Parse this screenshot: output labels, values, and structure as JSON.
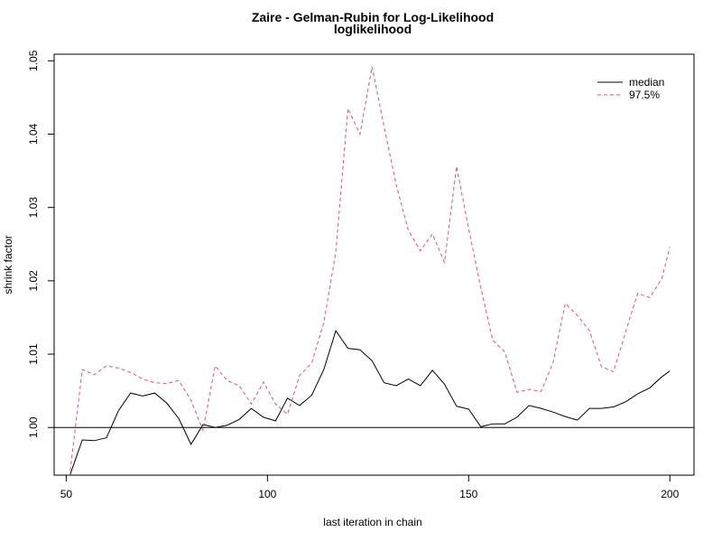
{
  "chart_data": {
    "type": "line",
    "title": "Zaire - Gelman-Rubin for Log-Likelihood",
    "subtitle": "loglikelihood",
    "xlabel": "last iteration in chain",
    "ylabel": "shrink factor",
    "xlim": [
      47,
      206
    ],
    "ylim": [
      0.9935,
      1.0509
    ],
    "x_ticks": [
      50,
      100,
      150,
      200
    ],
    "y_ticks": [
      1.0,
      1.01,
      1.02,
      1.03,
      1.04,
      1.05
    ],
    "x_tick_labels": [
      "50",
      "100",
      "150",
      "200"
    ],
    "y_tick_labels": [
      "1.00",
      "1.01",
      "1.02",
      "1.03",
      "1.04",
      "1.05"
    ],
    "hline": 1.0,
    "legend_position": "top-right",
    "x": [
      51,
      54,
      57,
      60,
      63,
      66,
      69,
      72,
      75,
      78,
      81,
      84,
      87,
      90,
      93,
      96,
      99,
      102,
      105,
      108,
      111,
      114,
      117,
      120,
      123,
      126,
      129,
      132,
      135,
      138,
      141,
      144,
      147,
      150,
      153,
      156,
      159,
      162,
      165,
      168,
      171,
      174,
      177,
      180,
      183,
      186,
      189,
      192,
      195,
      198,
      200
    ],
    "series": [
      {
        "name": "median",
        "color": "#000000",
        "dash": "solid",
        "values": [
          0.9936,
          0.9983,
          0.9982,
          0.9986,
          1.0023,
          1.0047,
          1.0043,
          1.0047,
          1.0033,
          1.0012,
          0.9977,
          1.0004,
          1.0,
          1.0003,
          1.0011,
          1.0026,
          1.0014,
          1.0009,
          1.004,
          1.003,
          1.0044,
          1.0079,
          1.0132,
          1.0108,
          1.0106,
          1.0091,
          1.0061,
          1.0057,
          1.0066,
          1.0057,
          1.0078,
          1.0059,
          1.0029,
          1.0025,
          1.0001,
          1.0005,
          1.0005,
          1.0014,
          1.003,
          1.0026,
          1.0021,
          1.0015,
          1.001,
          1.0026,
          1.0026,
          1.0028,
          1.0035,
          1.0046,
          1.0054,
          1.0069,
          1.0077
        ]
      },
      {
        "name": "97.5%",
        "color": "#DF536B",
        "dash": "dashed",
        "values": [
          0.9941,
          1.0079,
          1.0072,
          1.0084,
          1.0081,
          1.0075,
          1.0066,
          1.0061,
          1.006,
          1.0064,
          1.0037,
          0.9996,
          1.0084,
          1.0064,
          1.0057,
          1.0032,
          1.0062,
          1.0032,
          1.0018,
          1.0071,
          1.0088,
          1.0143,
          1.0239,
          1.0435,
          1.04,
          1.0492,
          1.041,
          1.0331,
          1.0269,
          1.0241,
          1.0264,
          1.0225,
          1.0356,
          1.0271,
          1.0191,
          1.0119,
          1.0103,
          1.0048,
          1.0052,
          1.0049,
          1.0089,
          1.0169,
          1.0153,
          1.0132,
          1.0083,
          1.0076,
          1.013,
          1.0183,
          1.0177,
          1.0203,
          1.0246
        ]
      }
    ]
  }
}
